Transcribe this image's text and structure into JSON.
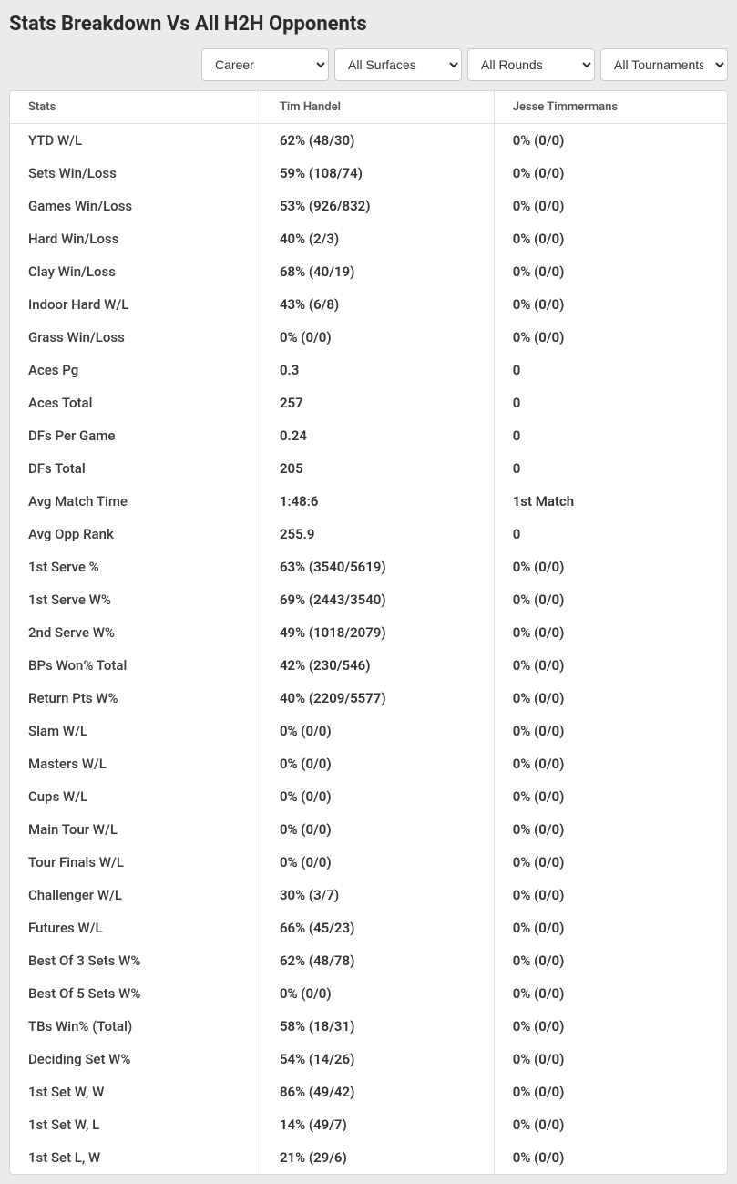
{
  "title": "Stats Breakdown Vs All H2H Opponents",
  "filters": {
    "career": "Career",
    "surfaces": "All Surfaces",
    "rounds": "All Rounds",
    "tournaments": "All Tournaments"
  },
  "table": {
    "headers": {
      "stats": "Stats",
      "player1": "Tim Handel",
      "player2": "Jesse Timmermans"
    },
    "rows": [
      {
        "stat": "YTD W/L",
        "p1": "62% (48/30)",
        "p2": "0% (0/0)"
      },
      {
        "stat": "Sets Win/Loss",
        "p1": "59% (108/74)",
        "p2": "0% (0/0)"
      },
      {
        "stat": "Games Win/Loss",
        "p1": "53% (926/832)",
        "p2": "0% (0/0)"
      },
      {
        "stat": "Hard Win/Loss",
        "p1": "40% (2/3)",
        "p2": "0% (0/0)"
      },
      {
        "stat": "Clay Win/Loss",
        "p1": "68% (40/19)",
        "p2": "0% (0/0)"
      },
      {
        "stat": "Indoor Hard W/L",
        "p1": "43% (6/8)",
        "p2": "0% (0/0)"
      },
      {
        "stat": "Grass Win/Loss",
        "p1": "0% (0/0)",
        "p2": "0% (0/0)"
      },
      {
        "stat": "Aces Pg",
        "p1": "0.3",
        "p2": "0"
      },
      {
        "stat": "Aces Total",
        "p1": "257",
        "p2": "0"
      },
      {
        "stat": "DFs Per Game",
        "p1": "0.24",
        "p2": "0"
      },
      {
        "stat": "DFs Total",
        "p1": "205",
        "p2": "0"
      },
      {
        "stat": "Avg Match Time",
        "p1": "1:48:6",
        "p2": "1st Match"
      },
      {
        "stat": "Avg Opp Rank",
        "p1": "255.9",
        "p2": "0"
      },
      {
        "stat": "1st Serve %",
        "p1": "63% (3540/5619)",
        "p2": "0% (0/0)"
      },
      {
        "stat": "1st Serve W%",
        "p1": "69% (2443/3540)",
        "p2": "0% (0/0)"
      },
      {
        "stat": "2nd Serve W%",
        "p1": "49% (1018/2079)",
        "p2": "0% (0/0)"
      },
      {
        "stat": "BPs Won% Total",
        "p1": "42% (230/546)",
        "p2": "0% (0/0)"
      },
      {
        "stat": "Return Pts W%",
        "p1": "40% (2209/5577)",
        "p2": "0% (0/0)"
      },
      {
        "stat": "Slam W/L",
        "p1": "0% (0/0)",
        "p2": "0% (0/0)"
      },
      {
        "stat": "Masters W/L",
        "p1": "0% (0/0)",
        "p2": "0% (0/0)"
      },
      {
        "stat": "Cups W/L",
        "p1": "0% (0/0)",
        "p2": "0% (0/0)"
      },
      {
        "stat": "Main Tour W/L",
        "p1": "0% (0/0)",
        "p2": "0% (0/0)"
      },
      {
        "stat": "Tour Finals W/L",
        "p1": "0% (0/0)",
        "p2": "0% (0/0)"
      },
      {
        "stat": "Challenger W/L",
        "p1": "30% (3/7)",
        "p2": "0% (0/0)"
      },
      {
        "stat": "Futures W/L",
        "p1": "66% (45/23)",
        "p2": "0% (0/0)"
      },
      {
        "stat": "Best Of 3 Sets W%",
        "p1": "62% (48/78)",
        "p2": "0% (0/0)"
      },
      {
        "stat": "Best Of 5 Sets W%",
        "p1": "0% (0/0)",
        "p2": "0% (0/0)"
      },
      {
        "stat": "TBs Win% (Total)",
        "p1": "58% (18/31)",
        "p2": "0% (0/0)"
      },
      {
        "stat": "Deciding Set W%",
        "p1": "54% (14/26)",
        "p2": "0% (0/0)"
      },
      {
        "stat": "1st Set W, W",
        "p1": "86% (49/42)",
        "p2": "0% (0/0)"
      },
      {
        "stat": "1st Set W, L",
        "p1": "14% (49/7)",
        "p2": "0% (0/0)"
      },
      {
        "stat": "1st Set L, W",
        "p1": "21% (29/6)",
        "p2": "0% (0/0)"
      }
    ]
  }
}
